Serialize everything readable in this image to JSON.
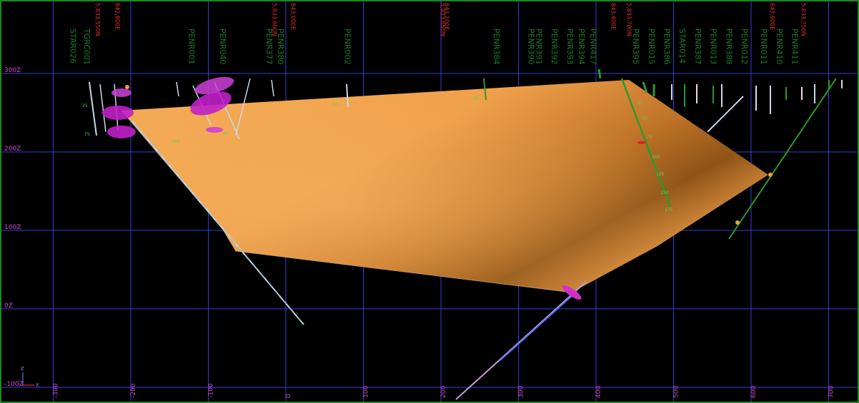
{
  "view": {
    "z_levels": [
      {
        "label": "300Z",
        "z": 300
      },
      {
        "label": "200Z",
        "z": 200
      },
      {
        "label": "100Z",
        "z": 100
      },
      {
        "label": "0Z",
        "z": 0
      },
      {
        "label": "-100Z",
        "z": -100
      }
    ],
    "x_levels": [
      {
        "label": "-300",
        "x": -300
      },
      {
        "label": "-200",
        "x": -200
      },
      {
        "label": "-100",
        "x": -100
      },
      {
        "label": "0",
        "x": 0
      },
      {
        "label": "100",
        "x": 100
      },
      {
        "label": "200",
        "x": 200
      },
      {
        "label": "300",
        "x": 300
      },
      {
        "label": "400",
        "x": 400
      },
      {
        "label": "500",
        "x": 500
      },
      {
        "label": "600",
        "x": 600
      },
      {
        "label": "700",
        "x": 700
      }
    ],
    "coord_labels": [
      {
        "text": "5,833,550N",
        "x": -245
      },
      {
        "text": "842,800E",
        "x": -220
      },
      {
        "text": "5,833,600N",
        "x": -17
      },
      {
        "text": "843,000E",
        "x": 7
      },
      {
        "text": "5,833,650N",
        "x": 200
      },
      {
        "text": "843,200E",
        "x": 205
      },
      {
        "text": "843,400E",
        "x": 420
      },
      {
        "text": "5,833,700N",
        "x": 440
      },
      {
        "text": "843,600E",
        "x": 625
      },
      {
        "text": "5,833,750N",
        "x": 665
      }
    ],
    "hole_labels": [
      {
        "text": "PENR384",
        "x": 268
      },
      {
        "text": "PENR390",
        "x": 313
      },
      {
        "text": "PENR391",
        "x": 323
      },
      {
        "text": "PENR392",
        "x": 343
      },
      {
        "text": "PENR393",
        "x": 363
      },
      {
        "text": "PENR394",
        "x": 378
      },
      {
        "text": "PENR417",
        "x": 393
      },
      {
        "text": "PENR395",
        "x": 448
      },
      {
        "text": "PENR015",
        "x": 468
      },
      {
        "text": "PENR386",
        "x": 488
      },
      {
        "text": "STAR014",
        "x": 508
      },
      {
        "text": "PENR387",
        "x": 528
      },
      {
        "text": "PENR013",
        "x": 548
      },
      {
        "text": "PENR388",
        "x": 568
      },
      {
        "text": "PENR012",
        "x": 588
      },
      {
        "text": "PENR011",
        "x": 613
      },
      {
        "text": "PENR410",
        "x": 633
      },
      {
        "text": "PENR411",
        "x": 653
      },
      {
        "text": "PENR002",
        "x": 76
      },
      {
        "text": "PENR380",
        "x": -10
      },
      {
        "text": "PENR377",
        "x": -25
      },
      {
        "text": "STAR026",
        "x": -278
      },
      {
        "text": "TGRC001",
        "x": -260
      },
      {
        "text": "PENR001",
        "x": -125
      },
      {
        "text": "PENR040",
        "x": -85
      }
    ],
    "axis_triad": {
      "z": "Z",
      "x": "X"
    }
  },
  "colors": {
    "background": "#000000",
    "grid": "#3b3bd6",
    "surface_light": "#f0a34e",
    "surface_dark": "#8a4f12",
    "z_label": "#d04ad0",
    "coord_label": "#e03030",
    "hole_label": "#1e7a2a",
    "frame": "#1c8a1c"
  }
}
